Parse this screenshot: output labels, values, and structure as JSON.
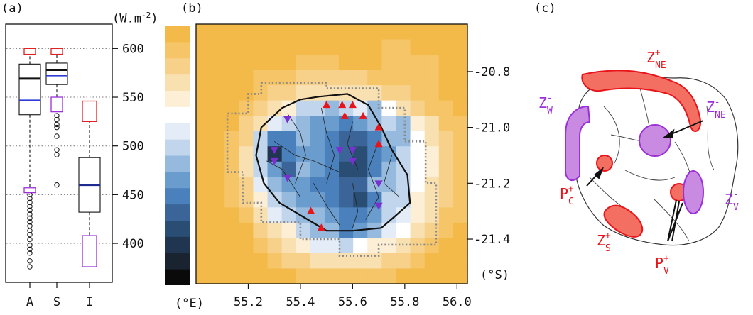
{
  "panel_labels": {
    "a": "(a)",
    "b": "(b)",
    "c": "(c)"
  },
  "unit_top": "(W.m",
  "unit_sup": "-2",
  "unit_close": ")",
  "lon_unit": "(°E)",
  "lat_unit": "(°S)",
  "chart_data": [
    {
      "type": "boxplot",
      "categories": [
        "A",
        "S",
        "I"
      ],
      "ylim": [
        360,
        625
      ],
      "y_ticks": [
        400,
        450,
        500,
        550,
        600
      ],
      "y_tick_labels": [
        "400",
        "450",
        "500",
        "550",
        "600"
      ],
      "grid": "dotted horizontal",
      "boxes": [
        {
          "category": "A",
          "whisker_low": 455,
          "q1": 532,
          "median": 569,
          "q3": 584,
          "whisker_high": 598,
          "mean": 547,
          "outliers": [
            376,
            382,
            390,
            394,
            398,
            404,
            409,
            413,
            418,
            422,
            426,
            430,
            434,
            438,
            442,
            446,
            450
          ]
        },
        {
          "category": "S",
          "whisker_low": 549,
          "q1": 563,
          "median": 578,
          "q3": 585,
          "whisker_high": 598,
          "mean": 572,
          "outliers": [
            460,
            491,
            496,
            510,
            519,
            522,
            527,
            531
          ]
        },
        {
          "category": "I",
          "whisker_low": 376,
          "q1": 432,
          "median": 462,
          "q3": 488,
          "whisker_high": 545,
          "mean": 460,
          "outliers": []
        }
      ],
      "marker_rects": [
        {
          "category": "A",
          "color": "#e02020",
          "low": 594,
          "high": 600
        },
        {
          "category": "A",
          "color": "#9b30d9",
          "low": 452,
          "high": 457
        },
        {
          "category": "S",
          "color": "#e02020",
          "low": 594,
          "high": 600
        },
        {
          "category": "S",
          "color": "#9b30d9",
          "low": 535,
          "high": 550
        },
        {
          "category": "I",
          "color": "#e02020",
          "low": 525,
          "high": 546
        },
        {
          "category": "I",
          "color": "#9b30d9",
          "low": 376,
          "high": 408
        }
      ],
      "colors": {
        "median": "#111111",
        "mean_A_S": "#2f3cd6",
        "mean_I": "#1f2a90"
      }
    },
    {
      "type": "colorbar",
      "range": [
        360,
        620
      ],
      "colors": [
        "#0a0a0a",
        "#1a2330",
        "#1f3550",
        "#2a4d74",
        "#3b6598",
        "#4a80bb",
        "#6a9ccd",
        "#95bade",
        "#c1d6ec",
        "#e4edf7",
        "#ffffff",
        "#fcefd6",
        "#f9e0b0",
        "#f7d18a",
        "#f5c567",
        "#f3ba4a"
      ]
    },
    {
      "type": "heatmap",
      "x_ticks": [
        55.2,
        55.4,
        55.6,
        55.8,
        56.0
      ],
      "x_tick_labels": [
        "55.2",
        "55.4",
        "55.6",
        "55.8",
        "56.0"
      ],
      "y_ticks": [
        20.8,
        21.0,
        21.2,
        21.4
      ],
      "y_tick_labels": [
        "-20.8",
        "-21.0",
        "-21.2",
        "-21.4"
      ],
      "xlim": [
        55.0,
        56.04
      ],
      "ylim": [
        20.63,
        21.56
      ],
      "grid_nx": 19,
      "grid_ny": 17,
      "palette": [
        "#0a0a0a",
        "#1a2330",
        "#1f3550",
        "#2a4d74",
        "#3b6598",
        "#4a80bb",
        "#6a9ccd",
        "#95bade",
        "#c1d6ec",
        "#e4edf7",
        "#ffffff",
        "#fcefd6",
        "#f9e0b0",
        "#f7d18a",
        "#f5c567",
        "#f3ba4a"
      ],
      "cells": [
        "FFFFFFFFFFFFFFFFFFF",
        "FFFFFFFFFFFFFEEFFFF",
        "FFFFFFFEEEFFFEEEEFF",
        "FFFFEEEDDDDDEEEEEFF",
        "FFFFEDDCCCCCCDDEEFF",
        "FFFEDCB887897ACDEEF",
        "FFFDC9876656787BCEE",
        "FFED85576544577ACDE",
        "FFEC82566543568ABDE",
        "FFEC86476533578ABDE",
        "FFED97665544778ACDE",
        "FFEDB8766543588BCDE",
        "FFFEC9877655689BCEE",
        "FFFFDCB8775679ACDEF",
        "FFFFEDCB998ABBCDEFF",
        "FFFFFEDDCCCCCDDEFFF",
        "FFFFFFFEEEEEEEFFFFF"
      ],
      "outline": [
        [
          55.47,
          20.89
        ],
        [
          55.58,
          20.88
        ],
        [
          55.66,
          20.92
        ],
        [
          55.71,
          21.0
        ],
        [
          55.75,
          21.08
        ],
        [
          55.81,
          21.17
        ],
        [
          55.82,
          21.27
        ],
        [
          55.76,
          21.32
        ],
        [
          55.71,
          21.36
        ],
        [
          55.6,
          21.37
        ],
        [
          55.5,
          21.37
        ],
        [
          55.41,
          21.32
        ],
        [
          55.32,
          21.27
        ],
        [
          55.26,
          21.2
        ],
        [
          55.23,
          21.1
        ],
        [
          55.25,
          21.0
        ],
        [
          55.33,
          20.93
        ],
        [
          55.4,
          20.9
        ],
        [
          55.47,
          20.89
        ]
      ],
      "triangles_up": [
        [
          55.5,
          20.92
        ],
        [
          55.56,
          20.92
        ],
        [
          55.6,
          20.92
        ],
        [
          55.57,
          20.96
        ],
        [
          55.64,
          20.96
        ],
        [
          55.7,
          21.0
        ],
        [
          55.7,
          21.06
        ],
        [
          55.44,
          21.3
        ],
        [
          55.48,
          21.36
        ]
      ],
      "triangles_down": [
        [
          55.35,
          20.97
        ],
        [
          55.3,
          21.08
        ],
        [
          55.3,
          21.12
        ],
        [
          55.55,
          21.08
        ],
        [
          55.6,
          21.08
        ],
        [
          55.6,
          21.12
        ],
        [
          55.35,
          21.18
        ],
        [
          55.7,
          21.2
        ],
        [
          55.7,
          21.28
        ]
      ],
      "marker_colors": {
        "up": "#e8141a",
        "down": "#7a2fd0"
      }
    },
    {
      "type": "diagram",
      "zones": [
        {
          "id": "Z_NE+",
          "text": "Z",
          "sub": "NE",
          "sup": "+",
          "color": "#e8141a"
        },
        {
          "id": "Z_W-",
          "text": "Z",
          "sub": "W",
          "sup": "-",
          "color": "#9b30d9"
        },
        {
          "id": "Z_NE-",
          "text": "Z",
          "sub": "NE",
          "sup": "-",
          "color": "#9b30d9"
        },
        {
          "id": "P_C+",
          "text": "P",
          "sub": "C",
          "sup": "+",
          "color": "#e8141a"
        },
        {
          "id": "Z_S+",
          "text": "Z",
          "sub": "S",
          "sup": "+",
          "color": "#e8141a"
        },
        {
          "id": "P_V+",
          "text": "P",
          "sub": "V",
          "sup": "+",
          "color": "#e8141a"
        },
        {
          "id": "Z_V-",
          "text": "Z",
          "sub": "V",
          "sup": "-",
          "color": "#9b30d9"
        }
      ]
    }
  ]
}
